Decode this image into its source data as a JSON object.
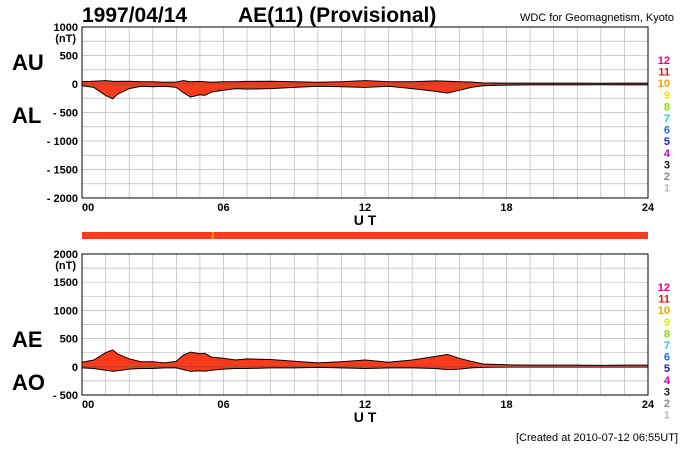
{
  "header": {
    "date": "1997/04/14",
    "title": "AE(11) (Provisional)",
    "source": "WDC for Geomagnetism, Kyoto"
  },
  "footer": {
    "created": "[Created at 2010-07-12 06:55UT]"
  },
  "station_legend": {
    "labels": [
      "12",
      "11",
      "10",
      "9",
      "8",
      "7",
      "6",
      "5",
      "4",
      "3",
      "2",
      "1"
    ],
    "colors": [
      "#e8007a",
      "#e81010",
      "#f0a000",
      "#e8e800",
      "#80e000",
      "#20d0d0",
      "#1070f0",
      "#2020c0",
      "#c000c0",
      "#202020",
      "#888888",
      "#bbbbbb"
    ]
  },
  "colors": {
    "fill": "#ff3a1a",
    "outline": "#000000",
    "grid": "#bbbbbb",
    "bar": "#ff3a1a",
    "bar_mark": "#f0a000"
  },
  "chart_data": [
    {
      "type": "area",
      "panel": "AU/AL",
      "labels_upper": "AU",
      "labels_lower": "AL",
      "unit": "(nT)",
      "xlabel": "U T",
      "xticks": [
        "00",
        "06",
        "12",
        "18",
        "24"
      ],
      "xlim": [
        0,
        24
      ],
      "ylim": [
        -2000,
        1000
      ],
      "yticks": [
        1000,
        500,
        0,
        -500,
        -1000,
        -1500,
        -2000
      ],
      "ytick_labels": [
        "1000",
        "500",
        "0",
        "- 500",
        "- 1000",
        "- 1500",
        "- 2000"
      ],
      "x": [
        0,
        0.5,
        1,
        1.3,
        1.5,
        2,
        2.5,
        3,
        3.5,
        4,
        4.3,
        4.6,
        5,
        5.2,
        5.5,
        6,
        6.5,
        7,
        8,
        9,
        10,
        11,
        12,
        13,
        14,
        15,
        15.5,
        16,
        16.5,
        17,
        18,
        19,
        20,
        21,
        22,
        23,
        24
      ],
      "au": [
        40,
        50,
        60,
        50,
        45,
        50,
        40,
        40,
        30,
        35,
        60,
        40,
        45,
        40,
        30,
        40,
        40,
        45,
        50,
        40,
        30,
        40,
        60,
        40,
        40,
        55,
        50,
        40,
        35,
        20,
        15,
        15,
        15,
        15,
        12,
        15,
        15
      ],
      "al": [
        -30,
        -60,
        -200,
        -260,
        -180,
        -80,
        -40,
        -50,
        -40,
        -60,
        -150,
        -230,
        -190,
        -200,
        -140,
        -110,
        -80,
        -90,
        -80,
        -60,
        -40,
        -50,
        -60,
        -40,
        -80,
        -130,
        -160,
        -110,
        -60,
        -30,
        -20,
        -15,
        -15,
        -15,
        -12,
        -15,
        -15
      ]
    },
    {
      "type": "area",
      "panel": "AE/AO",
      "labels_upper": "AE",
      "labels_lower": "AO",
      "unit": "(nT)",
      "xlabel": "U T",
      "xticks": [
        "00",
        "06",
        "12",
        "18",
        "24"
      ],
      "xlim": [
        0,
        24
      ],
      "ylim": [
        -500,
        2000
      ],
      "yticks": [
        2000,
        1500,
        1000,
        500,
        0,
        -500
      ],
      "ytick_labels": [
        "2000",
        "1500",
        "1000",
        "500",
        "0",
        "- 500"
      ],
      "x": [
        0,
        0.5,
        1,
        1.3,
        1.5,
        2,
        2.5,
        3,
        3.5,
        4,
        4.3,
        4.6,
        5,
        5.2,
        5.5,
        6,
        6.5,
        7,
        8,
        9,
        10,
        11,
        12,
        13,
        14,
        15,
        15.5,
        16,
        16.5,
        17,
        18,
        19,
        20,
        21,
        22,
        23,
        24
      ],
      "ae": [
        80,
        120,
        250,
        300,
        230,
        140,
        90,
        90,
        70,
        95,
        210,
        260,
        230,
        240,
        170,
        150,
        120,
        140,
        130,
        100,
        70,
        90,
        120,
        80,
        120,
        185,
        220,
        150,
        95,
        50,
        35,
        30,
        30,
        30,
        25,
        30,
        30
      ],
      "ao": [
        -20,
        -30,
        -60,
        -80,
        -70,
        -40,
        -30,
        -30,
        -20,
        -20,
        -50,
        -80,
        -70,
        -80,
        -60,
        -40,
        -30,
        -30,
        -20,
        -20,
        -10,
        -20,
        -30,
        -20,
        -20,
        -30,
        -50,
        -40,
        -20,
        -10,
        -5,
        -5,
        -5,
        -5,
        -5,
        -5,
        -5
      ]
    }
  ]
}
